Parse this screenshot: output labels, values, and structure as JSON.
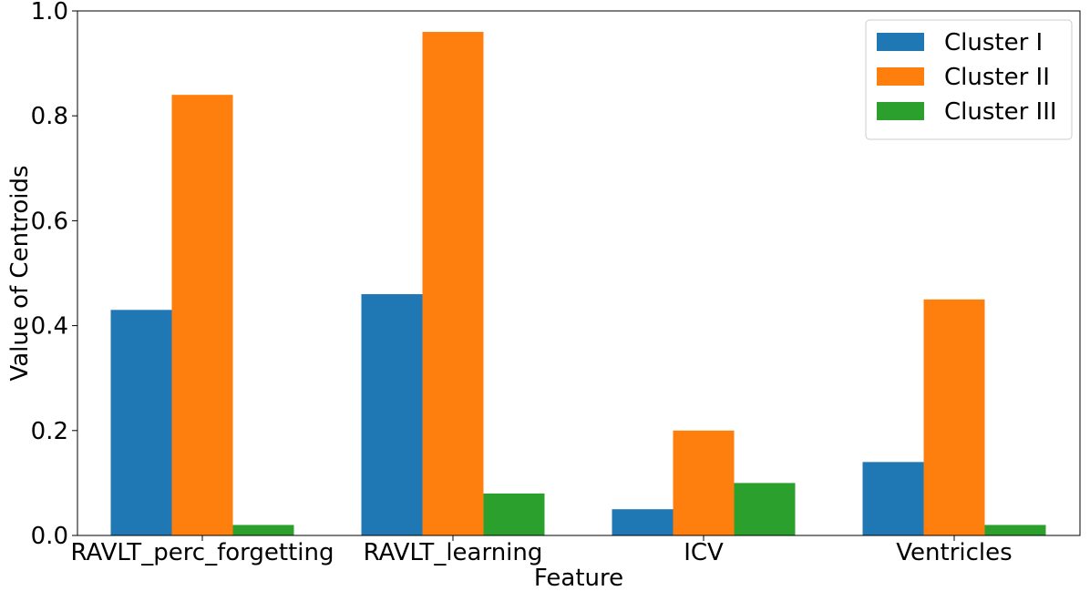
{
  "chart_data": {
    "type": "bar",
    "categories": [
      "RAVLT_perc_forgetting",
      "RAVLT_learning",
      "ICV",
      "Ventricles"
    ],
    "series": [
      {
        "name": "Cluster I",
        "color": "#1f77b4",
        "values": [
          0.43,
          0.46,
          0.05,
          0.14
        ]
      },
      {
        "name": "Cluster II",
        "color": "#ff7f0e",
        "values": [
          0.84,
          0.96,
          0.2,
          0.45
        ]
      },
      {
        "name": "Cluster III",
        "color": "#2ca02c",
        "values": [
          0.02,
          0.08,
          0.1,
          0.02
        ]
      }
    ],
    "xlabel": "Feature",
    "ylabel": "Value of Centroids",
    "ylim": [
      0,
      1.0
    ],
    "yticks": [
      0.0,
      0.2,
      0.4,
      0.6,
      0.8,
      1.0
    ],
    "ytick_labels": [
      "0.0",
      "0.2",
      "0.4",
      "0.6",
      "0.8",
      "1.0"
    ],
    "grid": false,
    "legend_position": "top-right"
  }
}
